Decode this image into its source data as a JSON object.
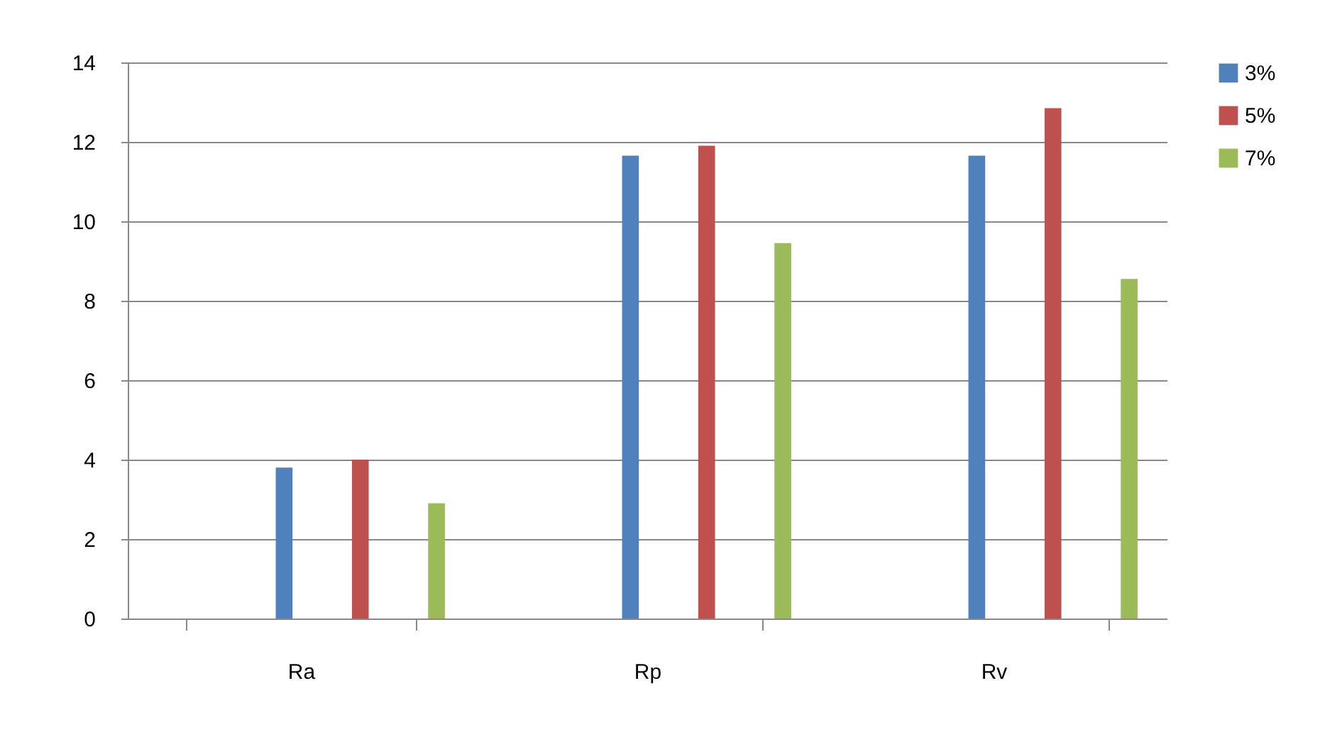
{
  "chart_data": {
    "type": "bar",
    "categories": [
      "Ra",
      "Rp",
      "Rv"
    ],
    "series": [
      {
        "name": "3%",
        "color": "#4f81bd",
        "values": [
          3.8,
          11.65,
          11.65
        ]
      },
      {
        "name": "5%",
        "color": "#c0504d",
        "values": [
          4.0,
          11.9,
          12.85
        ]
      },
      {
        "name": "7%",
        "color": "#9bbb59",
        "values": [
          2.9,
          9.45,
          8.55
        ]
      }
    ],
    "ylim": [
      0,
      14
    ],
    "yticks": [
      0,
      2,
      4,
      6,
      8,
      10,
      12,
      14
    ],
    "grid": "y",
    "legend": "right"
  }
}
